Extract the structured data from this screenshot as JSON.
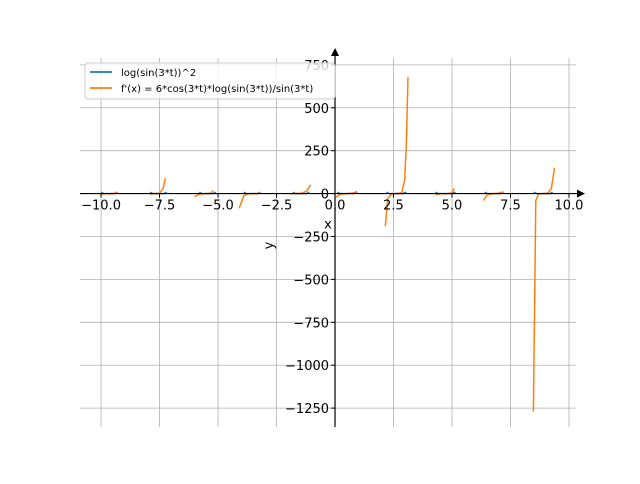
{
  "chart_data": {
    "type": "line",
    "xlabel": "x",
    "ylabel": "y",
    "xlim": [
      -10.9,
      10.3
    ],
    "ylim": [
      -1360,
      790
    ],
    "grid": true,
    "legend_position": "top-left",
    "axis_spines": "centered-at-origin-with-arrows",
    "x_ticks": [
      -10.0,
      -7.5,
      -5.0,
      -2.5,
      0.0,
      2.5,
      5.0,
      7.5,
      10.0
    ],
    "x_tick_labels": [
      "−10.0",
      "−7.5",
      "−5.0",
      "−2.5",
      "0.0",
      "2.5",
      "5.0",
      "7.5",
      "10.0"
    ],
    "y_ticks": [
      750,
      500,
      250,
      0,
      -250,
      -500,
      -750,
      -1000,
      -1250
    ],
    "y_tick_labels": [
      "750",
      "500",
      "250",
      "0",
      "−250",
      "−500",
      "−750",
      "−1000",
      "−1250"
    ],
    "series": [
      {
        "name": "log(sin(3*t))^2",
        "color": "#1f77b4",
        "segments": [
          [
            [
              -10.0,
              8.0
            ],
            [
              -9.9,
              0.5
            ],
            [
              -9.6,
              0.0
            ],
            [
              -9.4,
              0.5
            ],
            [
              -9.3,
              8.0
            ]
          ],
          [
            [
              -7.9,
              8.0
            ],
            [
              -7.8,
              0.5
            ],
            [
              -7.5,
              0.0
            ],
            [
              -7.3,
              0.5
            ],
            [
              -7.2,
              8.0
            ]
          ],
          [
            [
              -5.8,
              8.0
            ],
            [
              -5.7,
              0.5
            ],
            [
              -5.4,
              0.0
            ],
            [
              -5.2,
              0.5
            ],
            [
              -5.1,
              8.0
            ]
          ],
          [
            [
              -3.9,
              8.0
            ],
            [
              -3.8,
              0.5
            ],
            [
              -3.5,
              0.0
            ],
            [
              -3.3,
              0.5
            ],
            [
              -3.2,
              8.0
            ]
          ],
          [
            [
              -1.8,
              8.0
            ],
            [
              -1.7,
              0.5
            ],
            [
              -1.4,
              0.0
            ],
            [
              -1.2,
              0.5
            ],
            [
              -1.1,
              8.0
            ]
          ],
          [
            [
              0.1,
              8.0
            ],
            [
              0.2,
              0.5
            ],
            [
              0.5,
              0.0
            ],
            [
              0.8,
              0.5
            ],
            [
              0.95,
              8.0
            ]
          ],
          [
            [
              2.2,
              8.0
            ],
            [
              2.3,
              0.5
            ],
            [
              2.6,
              0.0
            ],
            [
              2.9,
              0.5
            ],
            [
              3.05,
              8.0
            ]
          ],
          [
            [
              4.3,
              8.0
            ],
            [
              4.4,
              0.5
            ],
            [
              4.7,
              0.0
            ],
            [
              5.0,
              0.5
            ],
            [
              5.15,
              8.0
            ]
          ],
          [
            [
              6.4,
              8.0
            ],
            [
              6.5,
              0.5
            ],
            [
              6.8,
              0.0
            ],
            [
              7.1,
              0.5
            ],
            [
              7.2,
              8.0
            ]
          ],
          [
            [
              8.5,
              8.0
            ],
            [
              8.6,
              0.5
            ],
            [
              8.9,
              0.0
            ],
            [
              9.2,
              0.5
            ],
            [
              9.3,
              8.0
            ]
          ]
        ]
      },
      {
        "name": "f'(x) = 6*cos(3*t)*log(sin(3*t))/sin(3*t)",
        "color": "#ff7f0e",
        "segments": [
          [
            [
              -10.0,
              -4.0
            ],
            [
              -9.9,
              -1.0
            ],
            [
              -9.6,
              0.0
            ],
            [
              -9.4,
              2.0
            ],
            [
              -9.3,
              10.0
            ]
          ],
          [
            [
              -7.9,
              -4.0
            ],
            [
              -7.8,
              -1.0
            ],
            [
              -7.5,
              2.0
            ],
            [
              -7.35,
              30.0
            ],
            [
              -7.25,
              90.0
            ]
          ],
          [
            [
              -6.0,
              -18.0
            ],
            [
              -5.8,
              -3.0
            ],
            [
              -5.5,
              0.0
            ],
            [
              -5.3,
              3.0
            ],
            [
              -5.2,
              18.0
            ]
          ],
          [
            [
              -4.1,
              -85.0
            ],
            [
              -3.9,
              -12.0
            ],
            [
              -3.7,
              -1.0
            ],
            [
              -3.4,
              0.0
            ],
            [
              -3.2,
              2.0
            ]
          ],
          [
            [
              -1.9,
              -2.0
            ],
            [
              -1.7,
              0.0
            ],
            [
              -1.4,
              3.0
            ],
            [
              -1.2,
              15.0
            ],
            [
              -1.05,
              52.0
            ]
          ],
          [
            [
              0.05,
              -22.0
            ],
            [
              0.2,
              -4.0
            ],
            [
              0.5,
              0.0
            ],
            [
              0.8,
              4.0
            ],
            [
              0.95,
              12.0
            ]
          ],
          [
            [
              2.15,
              -190.0
            ],
            [
              2.25,
              -30.0
            ],
            [
              2.4,
              -4.0
            ],
            [
              2.6,
              0.0
            ],
            [
              2.85,
              5.0
            ],
            [
              2.98,
              80.0
            ],
            [
              3.05,
              300.0
            ],
            [
              3.12,
              680.0
            ]
          ],
          [
            [
              4.3,
              -6.0
            ],
            [
              4.5,
              -1.0
            ],
            [
              4.8,
              0.0
            ],
            [
              5.0,
              4.0
            ],
            [
              5.1,
              30.0
            ]
          ],
          [
            [
              6.35,
              -40.0
            ],
            [
              6.5,
              -6.0
            ],
            [
              6.8,
              0.0
            ],
            [
              7.0,
              3.0
            ],
            [
              7.2,
              10.0
            ]
          ],
          [
            [
              8.48,
              -1270.0
            ],
            [
              8.58,
              -40.0
            ],
            [
              8.7,
              -3.0
            ],
            [
              8.9,
              0.0
            ],
            [
              9.1,
              3.0
            ],
            [
              9.25,
              30.0
            ],
            [
              9.38,
              150.0
            ]
          ]
        ]
      }
    ]
  }
}
